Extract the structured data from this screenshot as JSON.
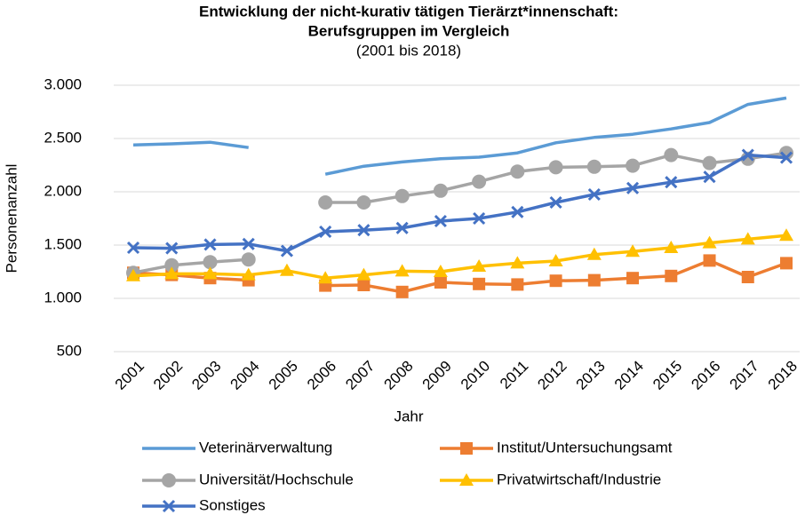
{
  "chart_data": {
    "type": "line",
    "title": [
      "Entwicklung der nicht-kurativ tätigen Tierärzt*innenschaft:",
      "Berufsgruppen im Vergleich"
    ],
    "subtitle": "(2001 bis 2018)",
    "y_label": "Personenanzahl",
    "x_label": "Jahr",
    "categories": [
      "2001",
      "2002",
      "2003",
      "2004",
      "2005",
      "2006",
      "2007",
      "2008",
      "2009",
      "2010",
      "2011",
      "2012",
      "2013",
      "2014",
      "2015",
      "2016",
      "2017",
      "2018"
    ],
    "ylim": [
      500,
      3000
    ],
    "yticks": [
      {
        "value": 3000,
        "label": "3.000"
      },
      {
        "value": 2500,
        "label": "2.500"
      },
      {
        "value": 2000,
        "label": "2.000"
      },
      {
        "value": 1500,
        "label": "1.500"
      },
      {
        "value": 1000,
        "label": "1.000"
      },
      500
    ],
    "grid": true,
    "legend": "bottom",
    "series": [
      {
        "name": "Veterinärverwaltung",
        "color": "#5b9bd5",
        "marker": "none",
        "values": [
          2440,
          2450,
          2465,
          2415,
          null,
          2165,
          2240,
          2280,
          2310,
          2325,
          2365,
          2460,
          2510,
          2540,
          2590,
          2650,
          2820,
          2880
        ]
      },
      {
        "name": "Institut/Untersuchungsamt",
        "color": "#ed7d31",
        "marker": "square",
        "values": [
          1240,
          1220,
          1190,
          1170,
          null,
          1120,
          1125,
          1060,
          1150,
          1135,
          1130,
          1165,
          1170,
          1190,
          1210,
          1355,
          1200,
          1330
        ]
      },
      {
        "name": "Universität/Hochschule",
        "color": "#a5a5a5",
        "marker": "circle",
        "values": [
          1240,
          1310,
          1340,
          1365,
          null,
          1900,
          1900,
          1960,
          2010,
          2095,
          2190,
          2230,
          2235,
          2245,
          2345,
          2270,
          2310,
          2365
        ]
      },
      {
        "name": "Privatwirtschaft/Industrie",
        "color": "#ffc000",
        "marker": "triangle",
        "values": [
          1210,
          1230,
          1230,
          1220,
          1260,
          1190,
          1220,
          1255,
          1250,
          1300,
          1330,
          1350,
          1410,
          1440,
          1475,
          1520,
          1555,
          1590
        ]
      },
      {
        "name": "Sonstiges",
        "color": "#4472c4",
        "marker": "x",
        "values": [
          1475,
          1470,
          1505,
          1510,
          1445,
          1625,
          1640,
          1660,
          1725,
          1750,
          1810,
          1900,
          1975,
          2035,
          2090,
          2140,
          2345,
          2320
        ]
      }
    ]
  }
}
